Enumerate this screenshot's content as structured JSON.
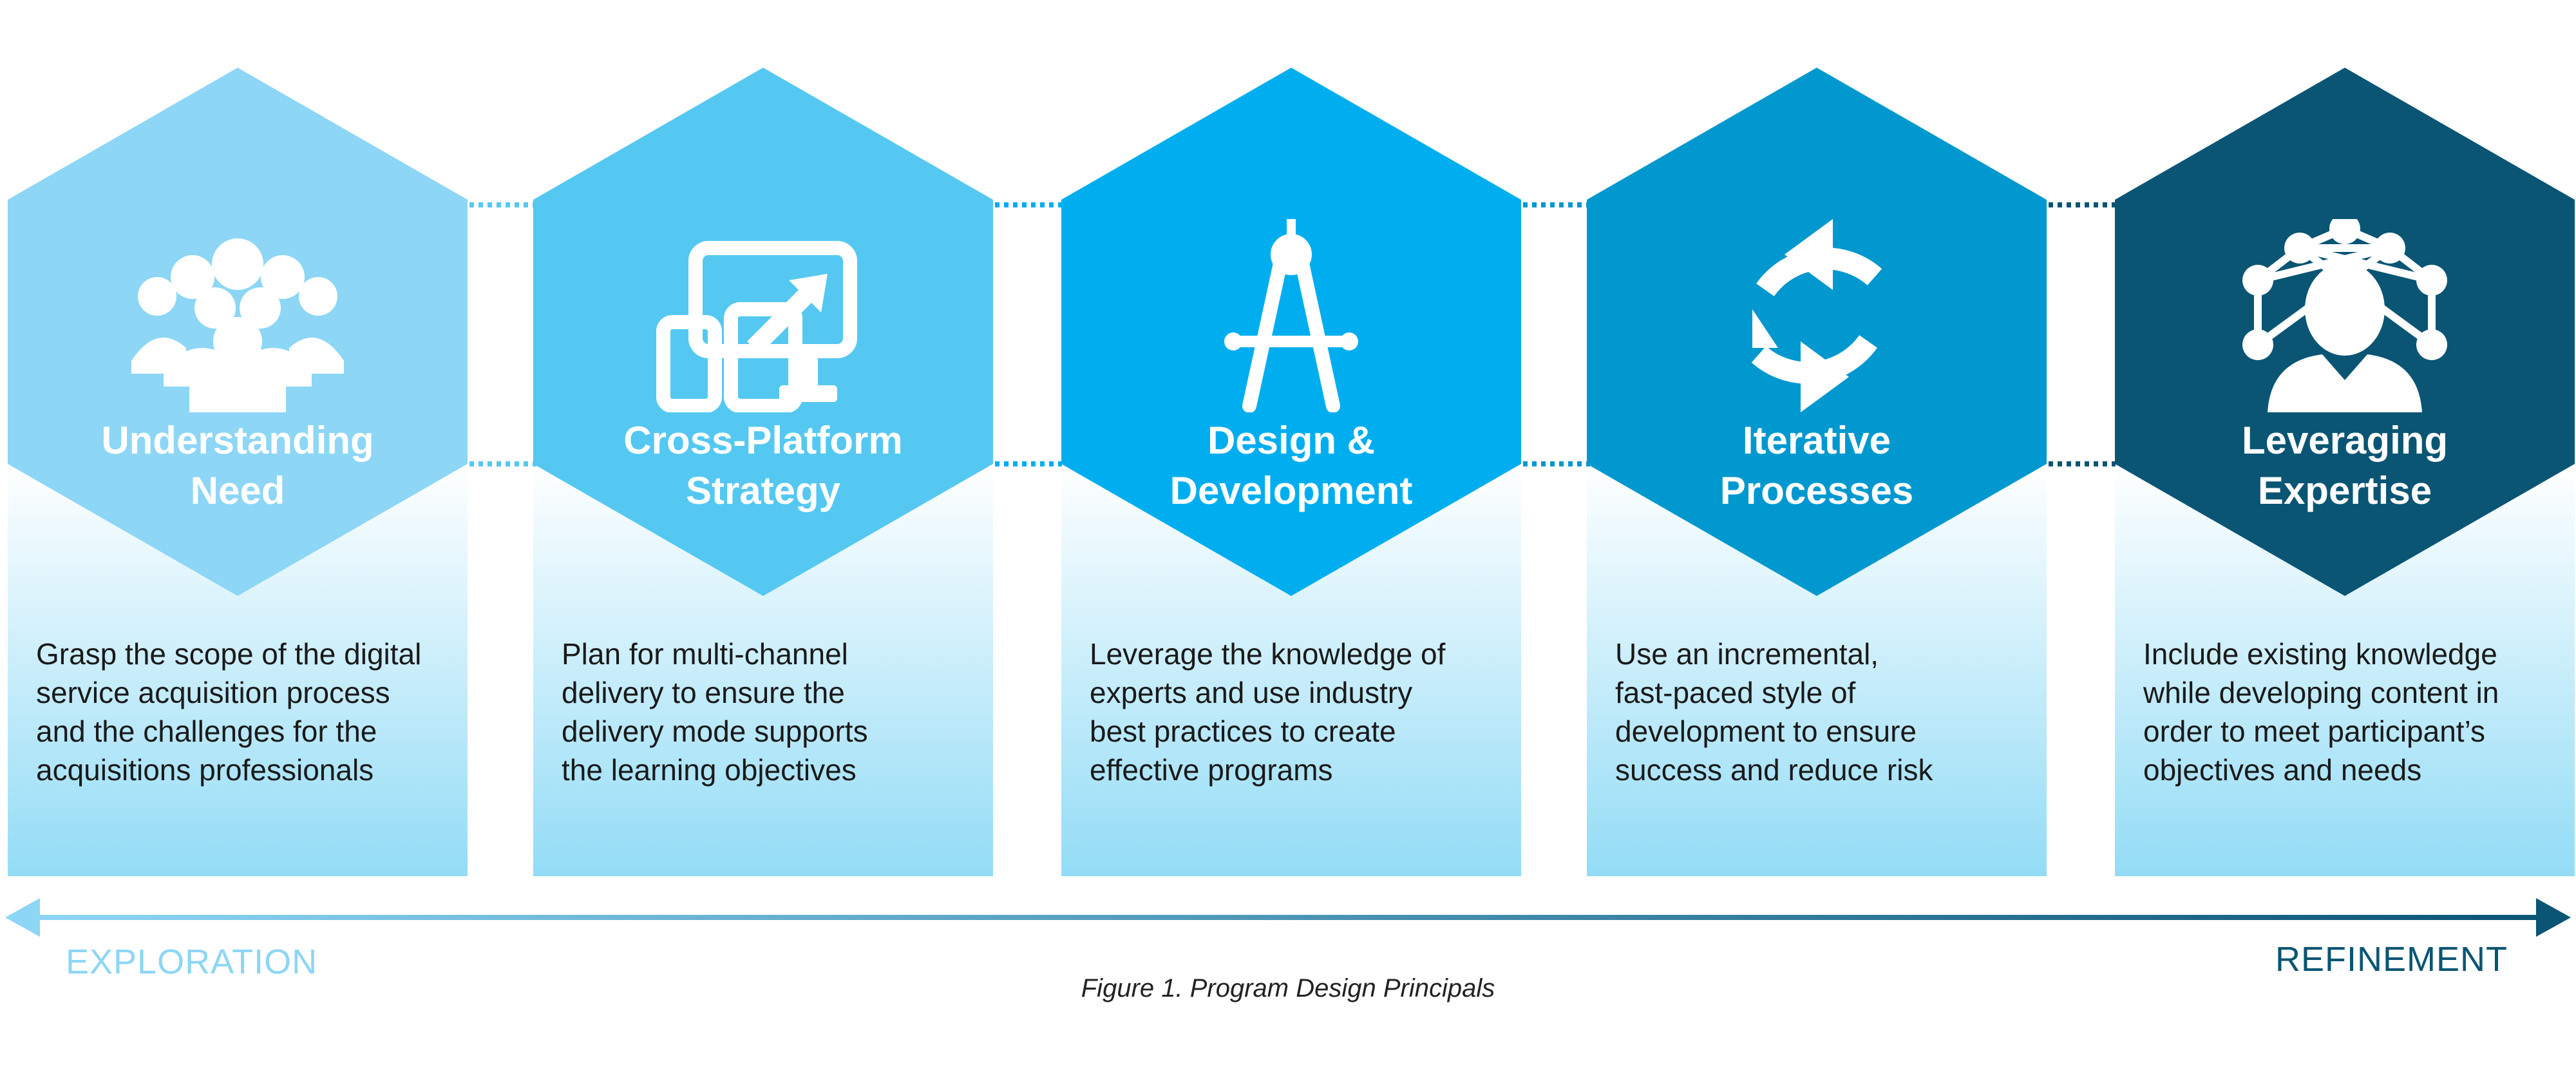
{
  "principles": [
    {
      "title": [
        "Understanding",
        "Need"
      ],
      "description": [
        "Grasp the scope of the digital",
        "service acquisition process",
        "and the challenges for the",
        "acquisitions professionals"
      ],
      "color": "#8dd6f5",
      "icon": "group-of-people-icon"
    },
    {
      "title": [
        "Cross-Platform",
        "Strategy"
      ],
      "description": [
        "Plan for multi-channel",
        "delivery to ensure the",
        "delivery mode supports",
        "the learning objectives"
      ],
      "color": "#55c8f1",
      "icon": "multi-device-icon"
    },
    {
      "title": [
        "Design &",
        "Development"
      ],
      "description": [
        "Leverage the knowledge of",
        "experts and use industry",
        "best practices to create",
        "effective programs"
      ],
      "color": "#00aeef",
      "icon": "drafting-compass-icon"
    },
    {
      "title": [
        "Iterative",
        "Processes"
      ],
      "description": [
        "Use an incremental,",
        "fast-paced style of",
        "development to ensure",
        "success and reduce risk"
      ],
      "color": "#0198cf",
      "icon": "cycle-arrows-icon"
    },
    {
      "title": [
        "Leveraging",
        "Expertise"
      ],
      "description": [
        "Include existing knowledge",
        "while developing content in",
        "order to meet participant’s",
        "objectives and needs"
      ],
      "color": "#0a5573",
      "icon": "expert-network-icon"
    }
  ],
  "panel_gradient": {
    "top": "#ffffff",
    "bottom": "#93dcf6"
  },
  "axis": {
    "left_label": "EXPLORATION",
    "right_label": "REFINEMENT",
    "left_color": "#8dd6f5",
    "right_color": "#0a5573"
  },
  "caption": "Figure 1. Program Design Principals"
}
